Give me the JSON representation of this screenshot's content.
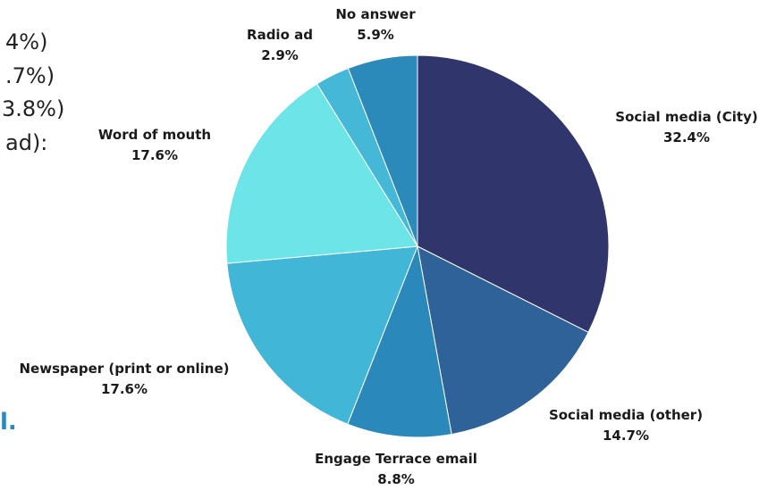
{
  "colors": {
    "background": "#ffffff",
    "slice_stroke": "#ffffff",
    "side_text": "#222222"
  },
  "side_text": {
    "lines": [
      "4%)",
      ".7%)",
      "3.8%)",
      "ad):"
    ],
    "trailing": "l."
  },
  "chart_data": {
    "type": "pie",
    "start_angle_deg": 0,
    "direction": "clockwise",
    "slices": [
      {
        "label": "Social media (City)",
        "value": 32.4,
        "value_label": "32.4%",
        "color": "#30366b"
      },
      {
        "label": "Social media (other)",
        "value": 14.7,
        "value_label": "14.7%",
        "color": "#2e6298"
      },
      {
        "label": "Engage Terrace email",
        "value": 8.8,
        "value_label": "8.8%",
        "color": "#2b88ba"
      },
      {
        "label": "Newspaper (print or online)",
        "value": 17.6,
        "value_label": "17.6%",
        "color": "#41b6d6"
      },
      {
        "label": "Word of mouth",
        "value": 17.6,
        "value_label": "17.6%",
        "color": "#6ce4e8"
      },
      {
        "label": "Radio ad",
        "value": 2.9,
        "value_label": "2.9%",
        "color": "#45b7d7"
      },
      {
        "label": "No answer",
        "value": 5.9,
        "value_label": "5.9%",
        "color": "#2b8ab9"
      }
    ]
  }
}
